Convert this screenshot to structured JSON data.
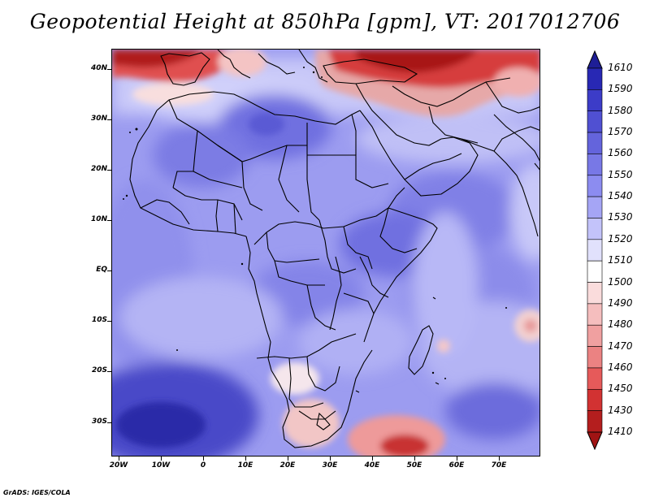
{
  "title": "Geopotential Height at 850hPa [gpm], VT: 2017012706",
  "credit": "GrADS: IGES/COLA",
  "axes": {
    "lat_labels": [
      "40N",
      "30N",
      "20N",
      "10N",
      "EQ",
      "10S",
      "20S",
      "30S"
    ],
    "lon_labels": [
      "20W",
      "10W",
      "0",
      "10E",
      "20E",
      "30E",
      "40E",
      "50E",
      "60E",
      "70E"
    ]
  },
  "colorbar": {
    "levels": [
      "1610",
      "1590",
      "1580",
      "1570",
      "1560",
      "1550",
      "1540",
      "1530",
      "1520",
      "1510",
      "1500",
      "1490",
      "1480",
      "1470",
      "1460",
      "1450",
      "1430",
      "1410"
    ],
    "colors": [
      "#1e1e96",
      "#2828b4",
      "#3c3cc8",
      "#5050d2",
      "#6464dc",
      "#7878e6",
      "#8c8cf0",
      "#a5a5f5",
      "#c3c3fa",
      "#e1e1fc",
      "#ffffff",
      "#fadcdc",
      "#f5bebe",
      "#f0a0a0",
      "#eb8282",
      "#e65a5a",
      "#d23232",
      "#b41e1e",
      "#a01414"
    ]
  },
  "colors": {
    "ocean_background": "#9e9ef2",
    "border_line": "#000000"
  }
}
